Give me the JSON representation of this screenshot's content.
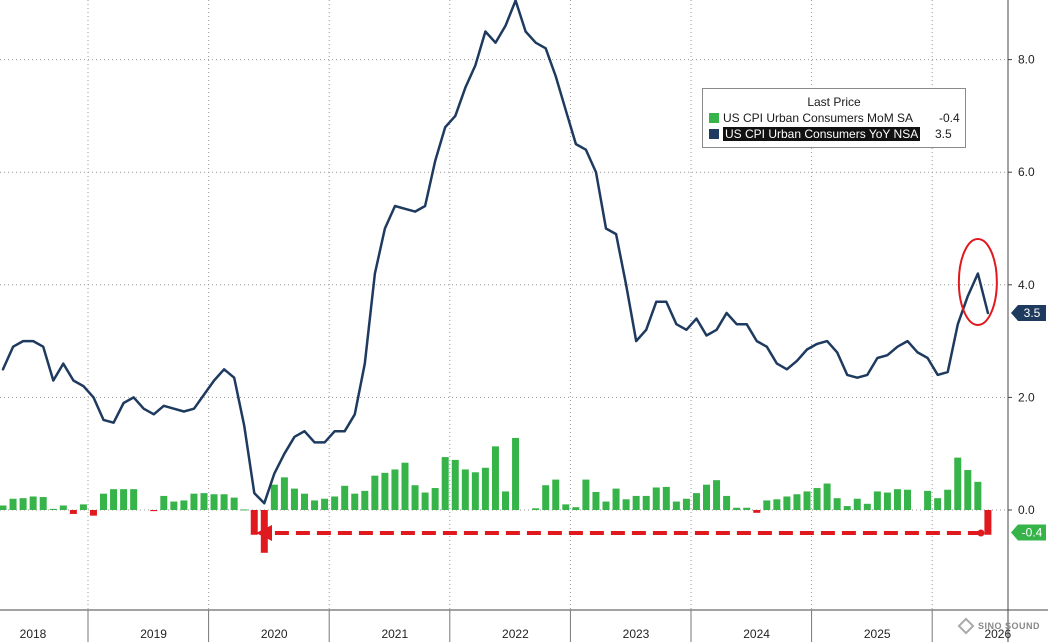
{
  "chart_data": {
    "type": "bar+line",
    "x_tick_labels": [
      "2018",
      "2019",
      "2020",
      "2021",
      "2022",
      "2023",
      "2024",
      "2025",
      "2026"
    ],
    "y_tick_labels": [
      "0.0",
      "2.0",
      "4.0",
      "6.0",
      "8.0"
    ],
    "ylim": [
      -1.7,
      9.0
    ],
    "grid": true,
    "legend": {
      "title": "Last Price",
      "placement": "top-right",
      "entries": [
        {
          "name": "US CPI Urban Consumers MoM SA",
          "value": "-0.4",
          "color": "#37b449"
        },
        {
          "name": "US CPI Urban Consumers YoY NSA",
          "value": "3.5",
          "color": "#1e3a5f"
        }
      ]
    },
    "last_value_tags": [
      {
        "text": "3.5",
        "value": 3.5,
        "bg": "#1e3a5f"
      },
      {
        "text": "-0.4",
        "value": -0.4,
        "bg": "#37b449"
      }
    ],
    "series": [
      {
        "name": "US CPI Urban Consumers MoM SA",
        "kind": "bar",
        "start": "2017-10",
        "positive_color": "#37b449",
        "negative_color": "#e0191e",
        "values": [
          0.24,
          0.26,
          0.19,
          0.08,
          0.2,
          0.21,
          0.24,
          0.23,
          0.02,
          0.08,
          -0.07,
          0.1,
          -0.1,
          0.29,
          0.37,
          0.37,
          0.37,
          0.0,
          -0.02,
          0.25,
          0.15,
          0.17,
          0.29,
          0.3,
          0.28,
          0.28,
          0.22,
          0.01,
          -0.44,
          -0.76,
          0.45,
          0.58,
          0.38,
          0.29,
          0.17,
          0.2,
          0.24,
          0.43,
          0.29,
          0.34,
          0.61,
          0.66,
          0.72,
          0.84,
          0.44,
          0.31,
          0.39,
          0.94,
          0.89,
          0.72,
          0.67,
          0.75,
          1.13,
          0.33,
          1.28,
          0.0,
          0.03,
          0.44,
          0.54,
          0.1,
          0.05,
          0.54,
          0.32,
          0.15,
          0.38,
          0.19,
          0.25,
          0.25,
          0.4,
          0.41,
          0.15,
          0.2,
          0.3,
          0.45,
          0.53,
          0.25,
          0.04,
          0.04,
          -0.05,
          0.17,
          0.19,
          0.24,
          0.28,
          0.33,
          0.39,
          0.47,
          0.21,
          0.07,
          0.2,
          0.11,
          0.33,
          0.31,
          0.37,
          0.36,
          0.0,
          0.34,
          0.21,
          0.36,
          0.93,
          0.71,
          0.5,
          -0.44
        ]
      },
      {
        "name": "US CPI Urban Consumers YoY NSA",
        "kind": "line",
        "start": "2018-01",
        "color": "#1e3a5f",
        "values": [
          2.5,
          2.9,
          3.0,
          3.0,
          2.9,
          2.3,
          2.6,
          2.3,
          2.2,
          2.0,
          1.6,
          1.55,
          1.9,
          2.0,
          1.8,
          1.7,
          1.85,
          1.8,
          1.75,
          1.8,
          2.05,
          2.3,
          2.5,
          2.35,
          1.5,
          0.3,
          0.12,
          0.65,
          1.0,
          1.3,
          1.4,
          1.2,
          1.2,
          1.4,
          1.4,
          1.7,
          2.6,
          4.2,
          5.0,
          5.4,
          5.35,
          5.3,
          5.4,
          6.2,
          6.8,
          7.0,
          7.5,
          7.9,
          8.5,
          8.3,
          8.6,
          9.05,
          8.5,
          8.3,
          8.2,
          7.7,
          7.1,
          6.5,
          6.4,
          6.0,
          5.0,
          4.9,
          4.0,
          3.0,
          3.2,
          3.7,
          3.7,
          3.3,
          3.2,
          3.4,
          3.1,
          3.2,
          3.5,
          3.3,
          3.3,
          3.0,
          2.9,
          2.6,
          2.5,
          2.65,
          2.85,
          2.95,
          3.0,
          2.8,
          2.4,
          2.35,
          2.4,
          2.7,
          2.75,
          2.9,
          3.0,
          2.8,
          2.7,
          2.4,
          2.45,
          3.3,
          3.8,
          4.2,
          3.5
        ]
      }
    ]
  },
  "annotations": {
    "circle_color": "#e0191e",
    "arrow_color": "#e0191e"
  },
  "watermark": {
    "text": "SINO SOUND"
  }
}
